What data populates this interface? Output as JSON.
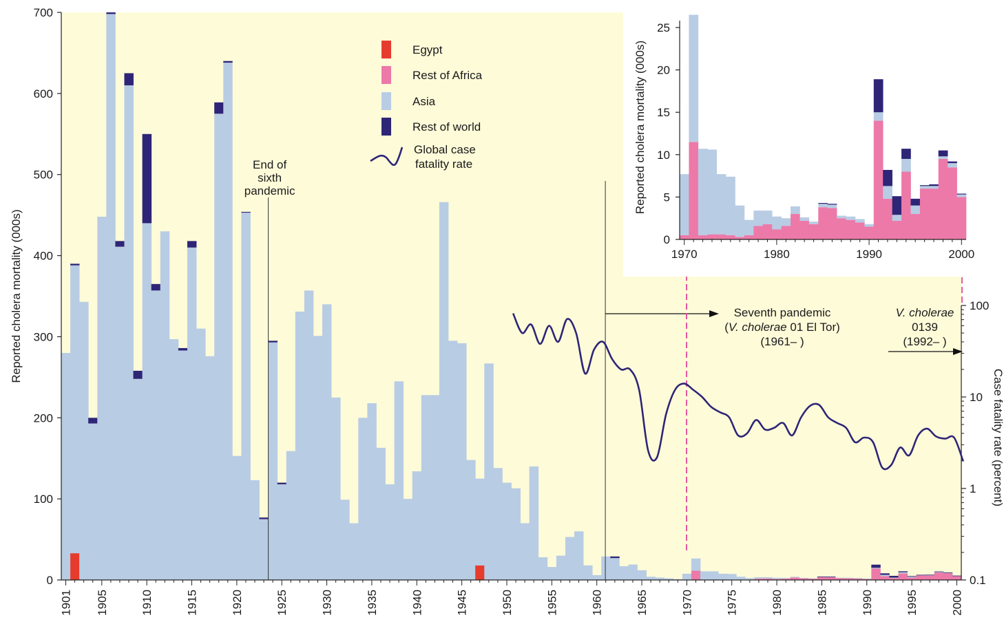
{
  "chart_data": [
    {
      "type": "bar",
      "stacked": true,
      "ylabel": "Reported cholera mortality (000s)",
      "ylim": [
        0,
        700
      ],
      "y_ticks": [
        0,
        100,
        200,
        300,
        400,
        500,
        600,
        700
      ],
      "x_tick_labels": [
        "1901",
        "1905",
        "1910",
        "1915",
        "1920",
        "1925",
        "1930",
        "1935",
        "1940",
        "1945",
        "1950",
        "1955",
        "1960",
        "1965",
        "1970",
        "1975",
        "1980",
        "1985",
        "1990",
        "1995",
        "2000"
      ],
      "years": [
        1901,
        1902,
        1903,
        1904,
        1905,
        1906,
        1907,
        1908,
        1909,
        1910,
        1911,
        1912,
        1913,
        1914,
        1915,
        1916,
        1917,
        1918,
        1919,
        1920,
        1921,
        1922,
        1923,
        1924,
        1925,
        1926,
        1927,
        1928,
        1929,
        1930,
        1931,
        1932,
        1933,
        1934,
        1935,
        1936,
        1937,
        1938,
        1939,
        1940,
        1941,
        1942,
        1943,
        1944,
        1945,
        1946,
        1947,
        1948,
        1949,
        1950,
        1951,
        1952,
        1953,
        1954,
        1955,
        1956,
        1957,
        1958,
        1959,
        1960,
        1961,
        1962,
        1963,
        1964,
        1965,
        1966,
        1967,
        1968,
        1969,
        1970,
        1971,
        1972,
        1973,
        1974,
        1975,
        1976,
        1977,
        1978,
        1979,
        1980,
        1981,
        1982,
        1983,
        1984,
        1985,
        1986,
        1987,
        1988,
        1989,
        1990,
        1991,
        1992,
        1993,
        1994,
        1995,
        1996,
        1997,
        1998,
        1999,
        2000
      ],
      "series": [
        {
          "name": "Egypt",
          "color": "#e63c2e",
          "values": [
            0,
            33,
            0,
            0,
            0,
            0,
            0,
            0,
            0,
            0,
            0,
            0,
            0,
            0,
            0,
            0,
            0,
            0,
            0,
            0,
            0,
            0,
            0,
            0,
            0,
            0,
            0,
            0,
            0,
            0,
            0,
            0,
            0,
            0,
            0,
            0,
            0,
            0,
            0,
            0,
            0,
            0,
            0,
            0,
            0,
            0,
            18,
            0,
            0,
            0,
            0,
            0,
            0,
            0,
            0,
            0,
            0,
            0,
            0,
            0,
            0,
            0,
            0,
            0,
            0,
            0,
            0,
            0,
            0,
            0,
            0,
            0,
            0,
            0,
            0,
            0,
            0,
            0,
            0,
            0,
            0,
            0,
            0,
            0,
            0,
            0,
            0,
            0,
            0,
            0,
            0,
            0,
            0,
            0,
            0,
            0,
            0,
            0,
            0,
            0
          ]
        },
        {
          "name": "Rest of Africa",
          "color": "#ec79a8",
          "values": [
            0,
            0,
            0,
            0,
            0,
            0,
            0,
            0,
            0,
            0,
            0,
            0,
            0,
            0,
            0,
            0,
            0,
            0,
            0,
            0,
            0,
            0,
            0,
            0,
            0,
            0,
            0,
            0,
            0,
            0,
            0,
            0,
            0,
            0,
            0,
            0,
            0,
            0,
            0,
            0,
            0,
            0,
            0,
            0,
            0,
            0,
            0,
            0,
            0,
            0,
            0,
            0,
            0,
            0,
            0,
            0,
            0,
            0,
            0,
            0,
            0,
            0,
            0,
            0,
            0,
            0,
            0,
            0,
            0,
            0.5,
            11.5,
            0.5,
            0.6,
            0.6,
            0.5,
            0.3,
            0.5,
            1.6,
            1.8,
            1.2,
            1.6,
            3.0,
            2.2,
            1.8,
            3.8,
            3.7,
            2.5,
            2.3,
            2.0,
            1.5,
            14.0,
            4.8,
            2.2,
            8.0,
            3.0,
            6.0,
            6.0,
            9.5,
            8.5,
            5.0
          ]
        },
        {
          "name": "Asia",
          "color": "#b8cce4",
          "values": [
            280,
            355,
            343,
            193,
            448,
            698,
            411,
            610,
            248,
            440,
            357,
            430,
            297,
            283,
            410,
            310,
            276,
            575,
            638,
            153,
            453,
            123,
            75,
            293,
            118,
            159,
            331,
            357,
            301,
            340,
            225,
            99,
            70,
            200,
            218,
            163,
            118,
            245,
            100,
            134,
            228,
            228,
            466,
            295,
            292,
            148,
            107,
            267,
            138,
            120,
            113,
            70,
            140,
            28,
            16,
            30,
            53,
            60,
            18,
            6,
            29,
            27,
            17,
            19,
            12,
            4,
            3,
            2,
            1,
            7.2,
            15.0,
            10.2,
            10.0,
            7.1,
            6.9,
            3.7,
            1.8,
            1.8,
            1.6,
            1.5,
            0.9,
            0.9,
            0.4,
            0.3,
            0.4,
            0.4,
            0.3,
            0.4,
            0.4,
            0.3,
            1.0,
            1.5,
            0.7,
            1.5,
            1.0,
            0.3,
            0.3,
            0.3,
            0.5,
            0.3
          ]
        },
        {
          "name": "Rest of world",
          "color": "#2e2577",
          "values": [
            0,
            2,
            0,
            7,
            0,
            2,
            7,
            15,
            10,
            110,
            8,
            0,
            0,
            3,
            8,
            0,
            0,
            14,
            2,
            0,
            1,
            0,
            2,
            2,
            2,
            0,
            0,
            0,
            0,
            0,
            0,
            0,
            0,
            0,
            0,
            0,
            0,
            0,
            0,
            0,
            0,
            0,
            0,
            0,
            0,
            0,
            0,
            0,
            0,
            0,
            0,
            0,
            0,
            0,
            0,
            0,
            0,
            0,
            0,
            0,
            0,
            2,
            0,
            0,
            0,
            0,
            0,
            0,
            0,
            0,
            0,
            0,
            0,
            0,
            0,
            0,
            0,
            0,
            0,
            0,
            0,
            0,
            0,
            0,
            0.1,
            0.1,
            0,
            0,
            0,
            0,
            3.9,
            1.9,
            2.2,
            1.2,
            0.8,
            0.1,
            0.2,
            0.7,
            0.2,
            0.1
          ]
        }
      ],
      "legend": [
        {
          "label": "Egypt",
          "color": "#e63c2e"
        },
        {
          "label": "Rest of Africa",
          "color": "#ec79a8"
        },
        {
          "label": "Asia",
          "color": "#b8cce4"
        },
        {
          "label": "Rest of world",
          "color": "#2e2577"
        },
        {
          "label_line1": "Global case",
          "label_line2": "fatality rate",
          "color": "#2e2577",
          "kind": "line"
        }
      ],
      "legend_placement": "top-center",
      "background_color": "#fefbd9",
      "annotations": {
        "sixth_end": {
          "lines": [
            "End of",
            "sixth",
            "pandemic"
          ],
          "year": 1923.5
        },
        "seventh": {
          "line1": "Seventh pandemic",
          "line2_italic": "V. cholerae",
          "line2_rest": " 01 El Tor)",
          "line2_open": "(",
          "line3": "(1961–   )",
          "year": 1961
        },
        "o139": {
          "line1_italic": "V. cholerae",
          "line2": "0139",
          "line3": "(1992–  )",
          "year": 1992
        }
      }
    },
    {
      "type": "line",
      "series_name": "Global case fatality rate",
      "y2label": "Case fatality rate (percent)",
      "y2_scale": "log",
      "y2lim": [
        0.1,
        100
      ],
      "y2_ticks": [
        "100",
        "10",
        "1",
        "0.1"
      ],
      "color": "#2e2577",
      "x": [
        1951,
        1952,
        1953,
        1954,
        1955,
        1956,
        1957,
        1958,
        1959,
        1960,
        1961,
        1962,
        1963,
        1964,
        1965,
        1966,
        1967,
        1968,
        1969,
        1970,
        1971,
        1972,
        1973,
        1974,
        1975,
        1976,
        1977,
        1978,
        1979,
        1980,
        1981,
        1982,
        1983,
        1984,
        1985,
        1986,
        1987,
        1988,
        1989,
        1990,
        1991,
        1992,
        1993,
        1994,
        1995,
        1996,
        1997,
        1998,
        1999,
        2000,
        2001
      ],
      "y": [
        82,
        50,
        62,
        38,
        60,
        40,
        71,
        50,
        18,
        33,
        40,
        26,
        20,
        20,
        12,
        2.6,
        2.2,
        6.5,
        12,
        14,
        12,
        10,
        7.8,
        6.8,
        6,
        3.8,
        4,
        5.6,
        4.4,
        4.6,
        5.2,
        3.8,
        6,
        8,
        8.2,
        6,
        5.2,
        4.6,
        3.2,
        3.6,
        3.2,
        1.7,
        1.8,
        2.8,
        2.3,
        3.8,
        4.5,
        3.7,
        3.5,
        3.6,
        2.0
      ]
    },
    {
      "type": "bar",
      "stacked": true,
      "inset": true,
      "ylabel": "Reported cholera mortality (000s)",
      "ylim": [
        0,
        25
      ],
      "y_ticks": [
        0,
        5,
        10,
        15,
        20,
        25
      ],
      "x_ticks": [
        "1970",
        "1980",
        "1990",
        "2000"
      ],
      "years": [
        1970,
        1971,
        1972,
        1973,
        1974,
        1975,
        1976,
        1977,
        1978,
        1979,
        1980,
        1981,
        1982,
        1983,
        1984,
        1985,
        1986,
        1987,
        1988,
        1989,
        1990,
        1991,
        1992,
        1993,
        1994,
        1995,
        1996,
        1997,
        1998,
        1999,
        2000
      ],
      "series": [
        {
          "name": "Rest of Africa",
          "values": [
            0.5,
            11.5,
            0.5,
            0.6,
            0.6,
            0.5,
            0.3,
            0.5,
            1.6,
            1.8,
            1.2,
            1.6,
            3.0,
            2.2,
            1.8,
            3.8,
            3.7,
            2.5,
            2.3,
            2.0,
            1.5,
            14.0,
            4.8,
            2.2,
            8.0,
            3.0,
            6.0,
            6.0,
            9.5,
            8.5,
            5.0
          ]
        },
        {
          "name": "Asia",
          "values": [
            7.2,
            15.0,
            10.2,
            10.0,
            7.1,
            6.9,
            3.7,
            1.8,
            1.8,
            1.6,
            1.5,
            0.9,
            0.9,
            0.4,
            0.3,
            0.4,
            0.4,
            0.3,
            0.4,
            0.4,
            0.3,
            1.0,
            1.5,
            0.7,
            1.5,
            1.0,
            0.3,
            0.3,
            0.3,
            0.5,
            0.3
          ]
        },
        {
          "name": "Rest of world",
          "values": [
            0,
            0,
            0,
            0,
            0,
            0,
            0,
            0,
            0,
            0,
            0,
            0,
            0,
            0,
            0,
            0.1,
            0.1,
            0,
            0,
            0,
            0,
            3.9,
            1.9,
            2.2,
            1.2,
            0.8,
            0.1,
            0.2,
            0.7,
            0.2,
            0.1
          ]
        }
      ]
    }
  ]
}
